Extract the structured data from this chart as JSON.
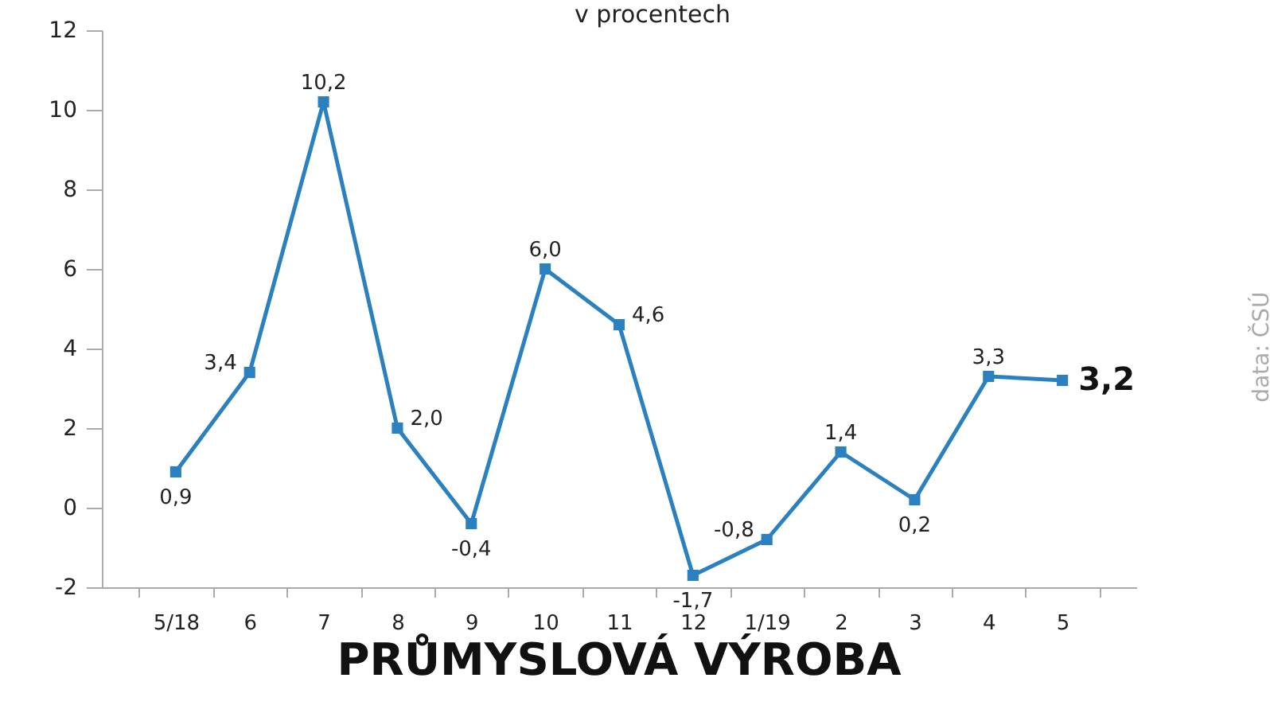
{
  "chart_data": {
    "type": "line",
    "title": "PRŮMYSLOVÁ VÝROBA",
    "subtitle": "v procentech",
    "annotations": [
      "data: ČSÚ"
    ],
    "categories": [
      "5/18",
      "6",
      "7",
      "8",
      "9",
      "10",
      "11",
      "12",
      "1/19",
      "2",
      "3",
      "4",
      "5"
    ],
    "series": [
      {
        "color": "#2b80c0",
        "values": [
          0.9,
          3.4,
          10.2,
          2.0,
          -0.4,
          6.0,
          4.6,
          -1.7,
          -0.8,
          1.4,
          0.2,
          3.3,
          3.2
        ],
        "value_labels": [
          "0,9",
          "3,4",
          "10,2",
          "2,0",
          "-0,4",
          "6,0",
          "4,6",
          "-1,7",
          "-0,8",
          "1,4",
          "0,2",
          "3,3",
          "3,2"
        ]
      }
    ],
    "ylim": [
      -2,
      12
    ],
    "yticks": [
      -2,
      0,
      2,
      4,
      6,
      8,
      10,
      12
    ],
    "grid": false,
    "marker": "square",
    "line_style": "solid"
  }
}
